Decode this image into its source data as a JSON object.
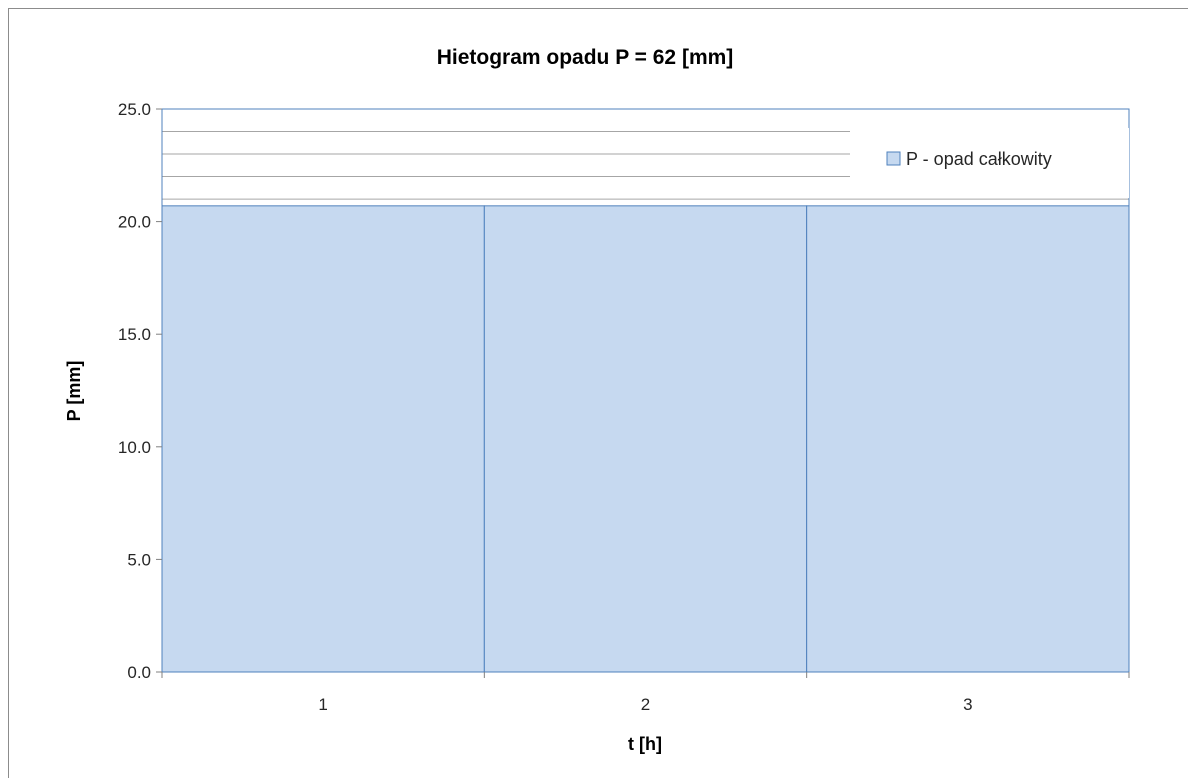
{
  "chart_data": {
    "type": "bar",
    "title": "Hietogram opadu P = 62 [mm]",
    "xlabel": "t [h]",
    "ylabel": "P [mm]",
    "categories": [
      "1",
      "2",
      "3"
    ],
    "series": [
      {
        "name": "P - opad całkowity",
        "values": [
          20.7,
          20.7,
          20.7
        ]
      }
    ],
    "ylim": [
      0,
      25
    ],
    "yticks": [
      "0.0",
      "5.0",
      "10.0",
      "15.0",
      "20.0",
      "25.0"
    ],
    "grid": true,
    "legend": "top-right",
    "colors": {
      "bar_fill": "#c6d9f0",
      "bar_stroke": "#4f81bd",
      "grid": "#a6a6a6",
      "plot_border": "#4f81bd"
    }
  }
}
